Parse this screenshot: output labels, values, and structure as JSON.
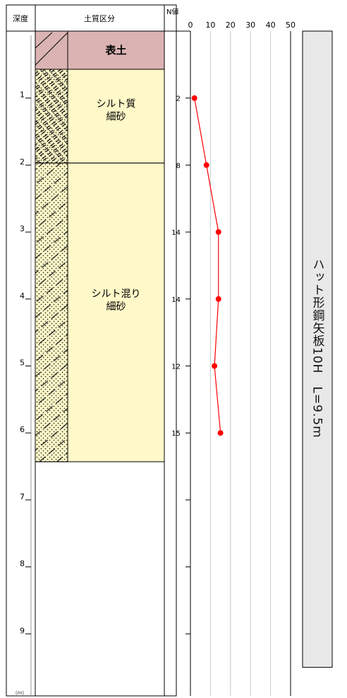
{
  "header": {
    "depth": "深度",
    "soil": "土質区分",
    "nvalue": "N値"
  },
  "depth_unit": "(m)",
  "depth_ticks": [
    1,
    2,
    3,
    4,
    5,
    6,
    7,
    8,
    9
  ],
  "n_axis_ticks": [
    0,
    10,
    20,
    30,
    40,
    50
  ],
  "layers": [
    {
      "name": "表土",
      "top": 0.0,
      "bottom": 0.57,
      "color": "#dbb3b3",
      "pattern": "topsoil"
    },
    {
      "name": "シルト質\n細砂",
      "top": 0.57,
      "bottom": 1.97,
      "color": "#fff8c8",
      "pattern": "silty-sand"
    },
    {
      "name": "シルト混り\n細砂",
      "top": 1.97,
      "bottom": 6.43,
      "color": "#fff8c8",
      "pattern": "silt-mixed-sand"
    }
  ],
  "chart_data": {
    "type": "line",
    "xlabel": "N値",
    "ylabel": "深度",
    "xlim": [
      0,
      50
    ],
    "ylim": [
      0,
      10
    ],
    "points": [
      {
        "depth": 1,
        "n": 2
      },
      {
        "depth": 2,
        "n": 8
      },
      {
        "depth": 3,
        "n": 14
      },
      {
        "depth": 4,
        "n": 14
      },
      {
        "depth": 5,
        "n": 12
      },
      {
        "depth": 6,
        "n": 15
      }
    ],
    "color": "#ff0000"
  },
  "pile": {
    "label": "ハット形鋼矢板10H　L=9.5m",
    "length": 9.5,
    "color": "#e8e8e8"
  }
}
